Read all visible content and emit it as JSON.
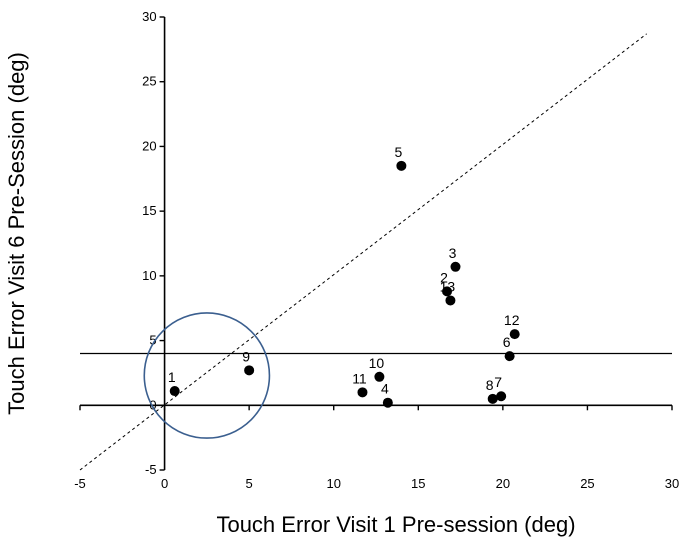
{
  "chart_data": {
    "type": "scatter",
    "xlabel": "Touch Error Visit 1 Pre-session (deg)",
    "ylabel": "Touch Error Visit 6 Pre-Session (deg)",
    "xlim": [
      -5,
      30
    ],
    "ylim": [
      -5,
      30
    ],
    "xticks": [
      -5,
      0,
      5,
      10,
      15,
      20,
      25,
      30
    ],
    "yticks": [
      -5,
      0,
      5,
      10,
      15,
      20,
      25,
      30
    ],
    "grid": false,
    "points": [
      {
        "label": "1",
        "x": 0.6,
        "y": 1.1
      },
      {
        "label": "9",
        "x": 5.0,
        "y": 2.7
      },
      {
        "label": "5",
        "x": 14.0,
        "y": 18.5
      },
      {
        "label": "3",
        "x": 17.2,
        "y": 10.7
      },
      {
        "label": "2",
        "x": 16.7,
        "y": 8.8
      },
      {
        "label": "13",
        "x": 16.9,
        "y": 8.1
      },
      {
        "label": "12",
        "x": 20.7,
        "y": 5.5
      },
      {
        "label": "6",
        "x": 20.4,
        "y": 3.8
      },
      {
        "label": "10",
        "x": 12.7,
        "y": 2.2
      },
      {
        "label": "11",
        "x": 11.7,
        "y": 1.0
      },
      {
        "label": "4",
        "x": 13.2,
        "y": 0.2
      },
      {
        "label": "8",
        "x": 19.4,
        "y": 0.5
      },
      {
        "label": "7",
        "x": 19.9,
        "y": 0.7
      }
    ],
    "reference_lines": {
      "identity_line": {
        "style": "dashed",
        "color": "#000000",
        "from": [
          -5,
          -5
        ],
        "to": [
          28.5,
          28.7
        ]
      },
      "horizontal_threshold": {
        "y": 4.0,
        "style": "solid",
        "color": "#000000"
      }
    },
    "highlight_circle": {
      "center": [
        2.5,
        2.3
      ],
      "radius_x_units": 3.7,
      "color": "#3b5f8f"
    },
    "marker_color": "#000000"
  }
}
